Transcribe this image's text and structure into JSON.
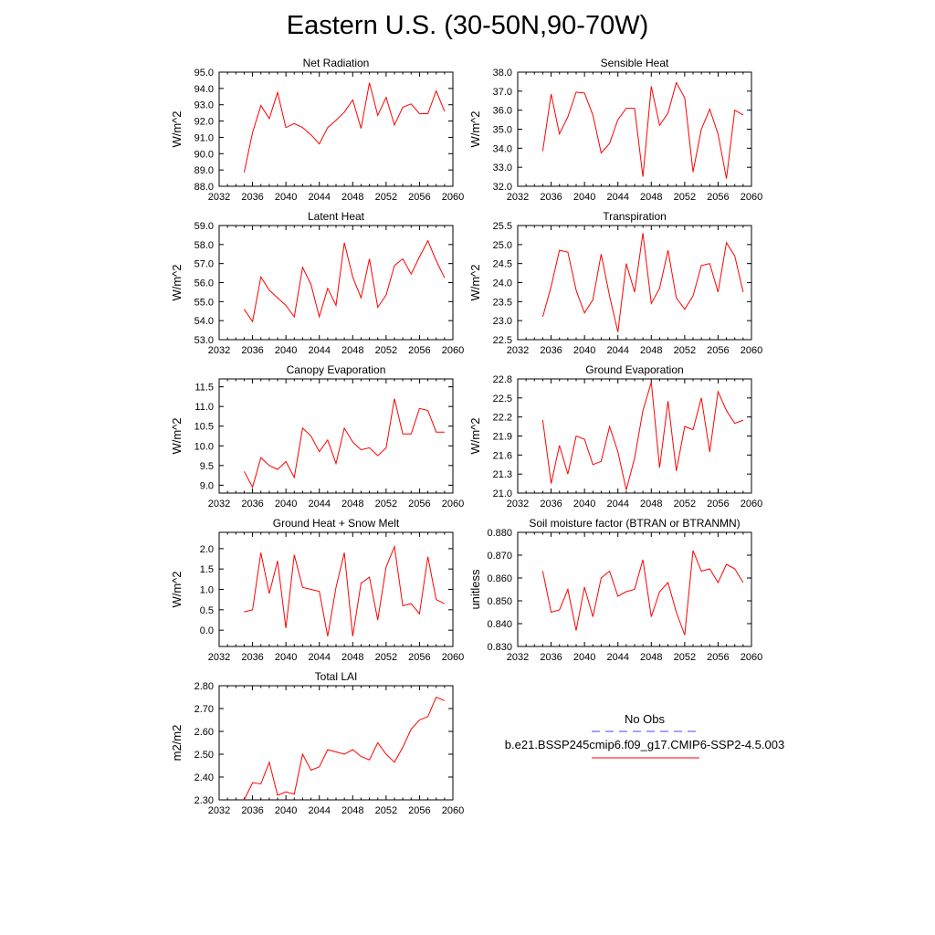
{
  "title": "Eastern U.S. (30-50N,90-70W)",
  "colors": {
    "model": "#ff0000",
    "obs": "#4444ff",
    "axis": "#000000"
  },
  "legend": {
    "obs_label": "No Obs",
    "model_label": "b.e21.BSSP245cmip6.f09_g17.CMIP6-SSP2-4.5.003"
  },
  "chart_data": [
    {
      "type": "line",
      "title": "Net Radiation",
      "ylabel": "W/m^2",
      "xlim": [
        2032,
        2060
      ],
      "ylim": [
        88.0,
        95.0
      ],
      "xticks": [
        2032,
        2036,
        2040,
        2044,
        2048,
        2052,
        2056,
        2060
      ],
      "yticks": [
        "88.0",
        "89.0",
        "90.0",
        "91.0",
        "92.0",
        "93.0",
        "94.0",
        "95.0"
      ],
      "series": [
        {
          "values": [
            88.85,
            91.3,
            92.95,
            92.15,
            93.75,
            91.6,
            91.85,
            91.6,
            91.15,
            90.6,
            91.6,
            92.05,
            92.55,
            93.3,
            91.55,
            94.35,
            92.35,
            93.45,
            91.75,
            92.85,
            93.05,
            92.45,
            92.45,
            93.85,
            92.6
          ]
        }
      ],
      "x": [
        2035,
        2036,
        2037,
        2038,
        2039,
        2040,
        2041,
        2042,
        2043,
        2044,
        2045,
        2046,
        2047,
        2048,
        2049,
        2050,
        2051,
        2052,
        2053,
        2054,
        2055,
        2056,
        2057,
        2058,
        2059
      ]
    },
    {
      "type": "line",
      "title": "Sensible Heat",
      "ylabel": "W/m^2",
      "xlim": [
        2032,
        2060
      ],
      "ylim": [
        32.0,
        38.0
      ],
      "xticks": [
        2032,
        2036,
        2040,
        2044,
        2048,
        2052,
        2056,
        2060
      ],
      "yticks": [
        "32.0",
        "33.0",
        "34.0",
        "35.0",
        "36.0",
        "37.0",
        "38.0"
      ],
      "series": [
        {
          "values": [
            33.85,
            36.85,
            34.75,
            35.65,
            36.95,
            36.9,
            35.75,
            33.75,
            34.25,
            35.5,
            36.1,
            36.1,
            32.5,
            37.25,
            35.2,
            35.85,
            37.45,
            36.65,
            32.75,
            35.0,
            36.05,
            34.75,
            32.4,
            36.0,
            35.75
          ]
        }
      ],
      "x": [
        2035,
        2036,
        2037,
        2038,
        2039,
        2040,
        2041,
        2042,
        2043,
        2044,
        2045,
        2046,
        2047,
        2048,
        2049,
        2050,
        2051,
        2052,
        2053,
        2054,
        2055,
        2056,
        2057,
        2058,
        2059
      ]
    },
    {
      "type": "line",
      "title": "Latent Heat",
      "ylabel": "W/m^2",
      "xlim": [
        2032,
        2060
      ],
      "ylim": [
        53.0,
        59.0
      ],
      "xticks": [
        2032,
        2036,
        2040,
        2044,
        2048,
        2052,
        2056,
        2060
      ],
      "yticks": [
        "53.0",
        "54.0",
        "55.0",
        "56.0",
        "57.0",
        "58.0",
        "59.0"
      ],
      "series": [
        {
          "values": [
            54.6,
            53.95,
            56.3,
            55.6,
            55.2,
            54.8,
            54.2,
            56.8,
            55.9,
            54.2,
            55.7,
            54.8,
            58.1,
            56.3,
            55.2,
            57.25,
            54.7,
            55.35,
            56.9,
            57.25,
            56.45,
            57.35,
            58.2,
            57.15,
            56.25
          ]
        }
      ],
      "x": [
        2035,
        2036,
        2037,
        2038,
        2039,
        2040,
        2041,
        2042,
        2043,
        2044,
        2045,
        2046,
        2047,
        2048,
        2049,
        2050,
        2051,
        2052,
        2053,
        2054,
        2055,
        2056,
        2057,
        2058,
        2059
      ]
    },
    {
      "type": "line",
      "title": "Transpiration",
      "ylabel": "W/m^2",
      "xlim": [
        2032,
        2060
      ],
      "ylim": [
        22.5,
        25.5
      ],
      "xticks": [
        2032,
        2036,
        2040,
        2044,
        2048,
        2052,
        2056,
        2060
      ],
      "yticks": [
        "22.5",
        "23.0",
        "23.5",
        "24.0",
        "24.5",
        "25.0",
        "25.5"
      ],
      "series": [
        {
          "values": [
            23.1,
            23.9,
            24.85,
            24.8,
            23.8,
            23.2,
            23.55,
            24.75,
            23.65,
            22.7,
            24.5,
            23.75,
            25.3,
            23.45,
            23.85,
            24.85,
            23.6,
            23.3,
            23.65,
            24.45,
            24.5,
            23.75,
            25.05,
            24.7,
            23.75
          ]
        }
      ],
      "x": [
        2035,
        2036,
        2037,
        2038,
        2039,
        2040,
        2041,
        2042,
        2043,
        2044,
        2045,
        2046,
        2047,
        2048,
        2049,
        2050,
        2051,
        2052,
        2053,
        2054,
        2055,
        2056,
        2057,
        2058,
        2059
      ]
    },
    {
      "type": "line",
      "title": "Canopy Evaporation",
      "ylabel": "W/m^2",
      "xlim": [
        2032,
        2060
      ],
      "ylim": [
        8.8,
        11.7
      ],
      "xticks": [
        2032,
        2036,
        2040,
        2044,
        2048,
        2052,
        2056,
        2060
      ],
      "yticks": [
        "9.0",
        "9.5",
        "10.0",
        "10.5",
        "11.0",
        "11.5"
      ],
      "series": [
        {
          "values": [
            9.35,
            8.95,
            9.7,
            9.5,
            9.4,
            9.6,
            9.2,
            10.45,
            10.25,
            9.85,
            10.15,
            9.55,
            10.45,
            10.1,
            9.9,
            9.95,
            9.75,
            9.95,
            11.2,
            10.3,
            10.3,
            10.95,
            10.9,
            10.35,
            10.35
          ]
        }
      ],
      "x": [
        2035,
        2036,
        2037,
        2038,
        2039,
        2040,
        2041,
        2042,
        2043,
        2044,
        2045,
        2046,
        2047,
        2048,
        2049,
        2050,
        2051,
        2052,
        2053,
        2054,
        2055,
        2056,
        2057,
        2058,
        2059
      ]
    },
    {
      "type": "line",
      "title": "Ground Evaporation",
      "ylabel": "W/m^2",
      "xlim": [
        2032,
        2060
      ],
      "ylim": [
        21.0,
        22.8
      ],
      "xticks": [
        2032,
        2036,
        2040,
        2044,
        2048,
        2052,
        2056,
        2060
      ],
      "yticks": [
        "21.0",
        "21.3",
        "21.6",
        "21.9",
        "22.2",
        "22.5",
        "22.8"
      ],
      "series": [
        {
          "values": [
            22.15,
            21.15,
            21.75,
            21.3,
            21.9,
            21.85,
            21.45,
            21.5,
            22.05,
            21.65,
            21.05,
            21.55,
            22.3,
            22.75,
            21.4,
            22.45,
            21.35,
            22.05,
            22.0,
            22.5,
            21.65,
            22.6,
            22.3,
            22.1,
            22.15
          ]
        }
      ],
      "x": [
        2035,
        2036,
        2037,
        2038,
        2039,
        2040,
        2041,
        2042,
        2043,
        2044,
        2045,
        2046,
        2047,
        2048,
        2049,
        2050,
        2051,
        2052,
        2053,
        2054,
        2055,
        2056,
        2057,
        2058,
        2059
      ]
    },
    {
      "type": "line",
      "title": "Ground Heat + Snow Melt",
      "ylabel": "W/m^2",
      "xlim": [
        2032,
        2060
      ],
      "ylim": [
        -0.4,
        2.4
      ],
      "xticks": [
        2032,
        2036,
        2040,
        2044,
        2048,
        2052,
        2056,
        2060
      ],
      "yticks": [
        "0.0",
        "0.5",
        "1.0",
        "1.5",
        "2.0"
      ],
      "series": [
        {
          "values": [
            0.45,
            0.5,
            1.9,
            0.9,
            1.7,
            0.05,
            1.85,
            1.05,
            1.0,
            0.95,
            -0.15,
            1.05,
            1.9,
            -0.15,
            1.15,
            1.3,
            0.25,
            1.55,
            2.05,
            0.6,
            0.65,
            0.4,
            1.8,
            0.75,
            0.65
          ]
        }
      ],
      "x": [
        2035,
        2036,
        2037,
        2038,
        2039,
        2040,
        2041,
        2042,
        2043,
        2044,
        2045,
        2046,
        2047,
        2048,
        2049,
        2050,
        2051,
        2052,
        2053,
        2054,
        2055,
        2056,
        2057,
        2058,
        2059
      ]
    },
    {
      "type": "line",
      "title": "Soil moisture factor (BTRAN or BTRANMN)",
      "ylabel": "unitless",
      "xlim": [
        2032,
        2060
      ],
      "ylim": [
        0.83,
        0.88
      ],
      "xticks": [
        2032,
        2036,
        2040,
        2044,
        2048,
        2052,
        2056,
        2060
      ],
      "yticks": [
        "0.830",
        "0.840",
        "0.850",
        "0.860",
        "0.870",
        "0.880"
      ],
      "series": [
        {
          "values": [
            0.863,
            0.845,
            0.846,
            0.855,
            0.837,
            0.856,
            0.843,
            0.86,
            0.863,
            0.852,
            0.854,
            0.855,
            0.868,
            0.843,
            0.854,
            0.858,
            0.845,
            0.835,
            0.872,
            0.863,
            0.864,
            0.858,
            0.866,
            0.864,
            0.858
          ]
        }
      ],
      "x": [
        2035,
        2036,
        2037,
        2038,
        2039,
        2040,
        2041,
        2042,
        2043,
        2044,
        2045,
        2046,
        2047,
        2048,
        2049,
        2050,
        2051,
        2052,
        2053,
        2054,
        2055,
        2056,
        2057,
        2058,
        2059
      ]
    },
    {
      "type": "line",
      "title": "Total LAI",
      "ylabel": "m2/m2",
      "xlim": [
        2032,
        2060
      ],
      "ylim": [
        2.3,
        2.8
      ],
      "xticks": [
        2032,
        2036,
        2040,
        2044,
        2048,
        2052,
        2056,
        2060
      ],
      "yticks": [
        "2.30",
        "2.40",
        "2.50",
        "2.60",
        "2.70",
        "2.80"
      ],
      "series": [
        {
          "values": [
            2.3,
            2.375,
            2.37,
            2.465,
            2.32,
            2.335,
            2.325,
            2.5,
            2.43,
            2.445,
            2.52,
            2.51,
            2.5,
            2.52,
            2.49,
            2.475,
            2.55,
            2.5,
            2.465,
            2.53,
            2.61,
            2.65,
            2.665,
            2.75,
            2.735
          ]
        }
      ],
      "x": [
        2035,
        2036,
        2037,
        2038,
        2039,
        2040,
        2041,
        2042,
        2043,
        2044,
        2045,
        2046,
        2047,
        2048,
        2049,
        2050,
        2051,
        2052,
        2053,
        2054,
        2055,
        2056,
        2057,
        2058,
        2059
      ]
    }
  ]
}
